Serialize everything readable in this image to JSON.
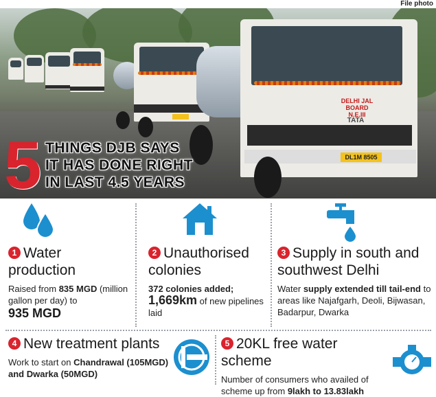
{
  "photo_credit": "File photo",
  "headline": {
    "number": "5",
    "lines": [
      "THINGS DJB SAYS",
      "IT HAS DONE RIGHT",
      "IN LAST 4.5 YEARS"
    ]
  },
  "photo": {
    "truck_label_line1": "DELHI JAL BOARD",
    "truck_label_line2": "N.E.III",
    "brand": "TATA",
    "plate": "DL1M 8505"
  },
  "items": [
    {
      "num": "1",
      "title": "Water production",
      "body_1": "Raised from ",
      "body_2": "835 MGD",
      "body_3": " (million gallon per day) to",
      "body_4": "935 MGD"
    },
    {
      "num": "2",
      "title": "Unauthorised colonies",
      "body_1": "372 colonies added;",
      "body_2": "1,669km",
      "body_3": " of new pipelines laid"
    },
    {
      "num": "3",
      "title": "Supply in south and southwest Delhi",
      "body_1": "Water ",
      "body_2": "supply extended till tail-end",
      "body_3": " to areas like Najafgarh, Deoli, Bijwasan, Badarpur, Dwarka"
    },
    {
      "num": "4",
      "title": "New treatment plants",
      "body_1": "Work to start on ",
      "body_2": "Chandrawal (105MGD) and Dwarka (50MGD)"
    },
    {
      "num": "5",
      "title": "20KL free water scheme",
      "body_1": "Number of consumers who availed of scheme up from ",
      "body_2": "9lakh to 13.83lakh"
    }
  ],
  "colors": {
    "accent_red": "#d9232d",
    "icon_blue": "#1c8fcf",
    "divider": "#9aa0a8"
  },
  "icons": [
    "water-drops-icon",
    "house-icon",
    "tap-icon",
    "treatment-plant-icon",
    "water-meter-icon"
  ]
}
